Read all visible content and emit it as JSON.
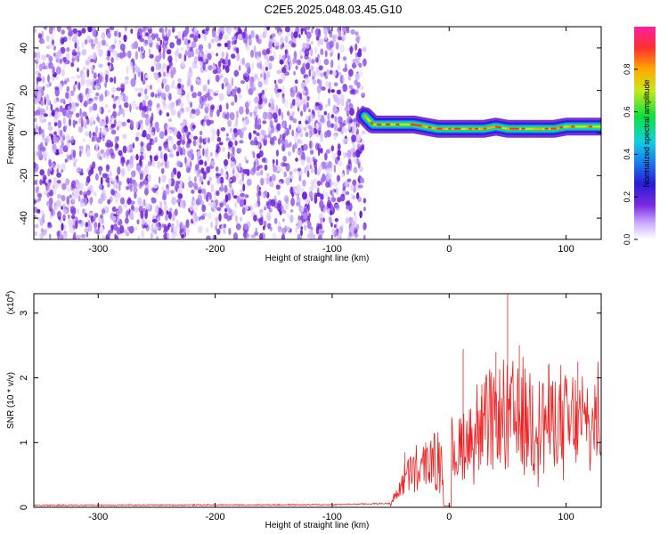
{
  "title": "C2E5.2025.048.03.45.G10",
  "chart_data": [
    {
      "type": "heatmap",
      "xlabel": "Height of straight line (km)",
      "ylabel": "Frequency (Hz)",
      "xlim": [
        -355,
        130
      ],
      "ylim": [
        -50,
        50
      ],
      "xticks": [
        -300,
        -200,
        -100,
        0,
        100
      ],
      "yticks": [
        -40,
        -20,
        0,
        20,
        40
      ],
      "noise_region_x": [
        -355,
        -72
      ],
      "signal_transition_x": -72,
      "signal_trace": {
        "x": [
          -72,
          -65,
          -50,
          -40,
          -30,
          -20,
          -10,
          0,
          10,
          20,
          30,
          40,
          50,
          60,
          70,
          80,
          90,
          100,
          110,
          120,
          130
        ],
        "freq": [
          8,
          4,
          4,
          4,
          4,
          3,
          2,
          2,
          2,
          2,
          2,
          3,
          2,
          2,
          2,
          2,
          2,
          3,
          3,
          3,
          3
        ]
      },
      "colorbar": {
        "label": "Normalized spectral amplitude",
        "range": [
          0,
          1
        ],
        "ticks": [
          "0.0",
          "0.2",
          "0.4",
          "0.6",
          "0.8"
        ],
        "colors": [
          "#ffffff",
          "#c8a8ff",
          "#7a2be0",
          "#2a1bd8",
          "#1a7af0",
          "#10d0e0",
          "#10e040",
          "#c8e81a",
          "#ffa800",
          "#ff3030",
          "#ff20a0"
        ]
      }
    },
    {
      "type": "line",
      "xlabel": "Height of straight line (km)",
      "ylabel": "SNR (10 * v/v)",
      "y_multiplier": "(x10^4)",
      "y_multiplier_base": "(x10",
      "y_multiplier_exp": "4",
      "y_multiplier_close": ")",
      "xlim": [
        -355,
        130
      ],
      "ylim": [
        0,
        3.3
      ],
      "xticks": [
        -300,
        -200,
        -100,
        0,
        100
      ],
      "yticks": [
        0,
        1,
        2,
        3
      ],
      "line_color": "#ee2222",
      "series": {
        "x": [
          -355,
          -100,
          -50,
          -45,
          -40,
          -35,
          -30,
          -25,
          -20,
          -15,
          -10,
          -5,
          0,
          5,
          10,
          15,
          20,
          25,
          30,
          35,
          40,
          45,
          50,
          55,
          60,
          65,
          70,
          75,
          80,
          85,
          90,
          95,
          100,
          105,
          110,
          115,
          120,
          125,
          130
        ],
        "y": [
          0.02,
          0.03,
          0.05,
          0.25,
          0.45,
          0.6,
          0.65,
          0.7,
          0.75,
          0.8,
          0.85,
          0.85,
          0.9,
          0.95,
          1.1,
          1.25,
          1.3,
          1.4,
          1.45,
          1.5,
          1.55,
          1.6,
          1.6,
          1.6,
          1.6,
          1.6,
          1.6,
          1.55,
          1.55,
          1.55,
          1.55,
          1.55,
          1.5,
          1.5,
          1.5,
          1.5,
          1.5,
          1.5,
          1.5
        ]
      },
      "peaks": [
        {
          "x": -38,
          "y": 0.85
        },
        {
          "x": -20,
          "y": 1.0
        },
        {
          "x": 12,
          "y": 2.45
        },
        {
          "x": 28,
          "y": 1.9
        },
        {
          "x": 40,
          "y": 2.4
        },
        {
          "x": 50,
          "y": 3.3
        },
        {
          "x": 60,
          "y": 2.5
        },
        {
          "x": 85,
          "y": 2.2
        },
        {
          "x": 110,
          "y": 2.25
        }
      ]
    }
  ]
}
